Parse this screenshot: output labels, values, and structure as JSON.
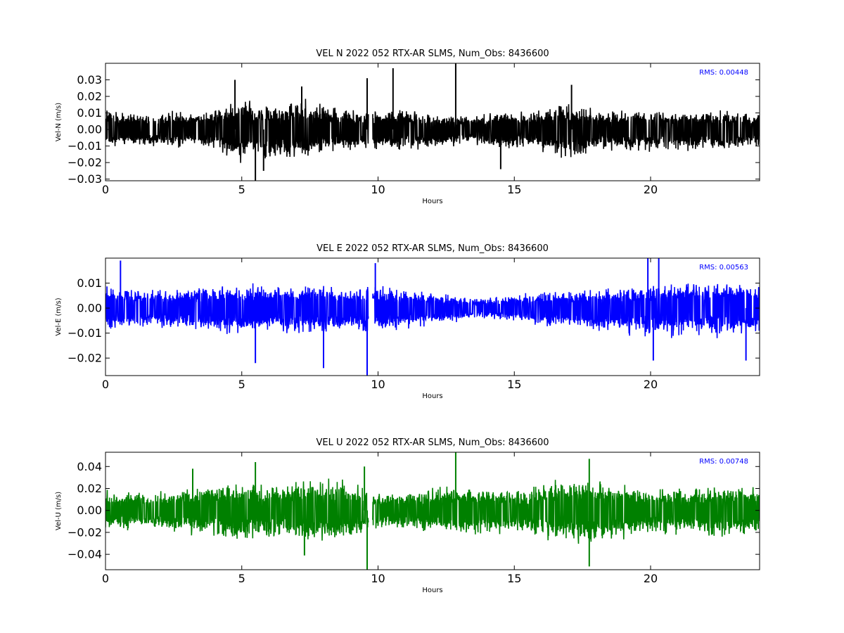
{
  "figure": {
    "background": "#ffffff"
  },
  "chart_data": [
    {
      "type": "line",
      "title": "VEL N 2022 052 RTX-AR  SLMS, Num_Obs: 8436600",
      "xlabel": "Hours",
      "ylabel": "Vel-N (m/s)",
      "color": "#000000",
      "xlim": [
        0,
        24
      ],
      "ylim": [
        -0.031,
        0.04
      ],
      "xticks": [
        0,
        5,
        10,
        15,
        20
      ],
      "yticks": [
        -0.03,
        -0.02,
        -0.01,
        0.0,
        0.01,
        0.02,
        0.03
      ],
      "ytick_labels": [
        "−0.03",
        "−0.02",
        "−0.01",
        "0.00",
        "0.01",
        "0.02",
        "0.03"
      ],
      "rms_label": "RMS:  0.00448",
      "rms_color": "#0000ff",
      "data_gap_hours": [
        9.65,
        9.8
      ],
      "envelope": {
        "hours": [
          0,
          2,
          4,
          4.8,
          5.5,
          6.5,
          7.3,
          8.5,
          9.6,
          9.8,
          11,
          12.5,
          13.5,
          14.5,
          15.5,
          16,
          17,
          18,
          19.5,
          21,
          22.5,
          24
        ],
        "upper": [
          0.012,
          0.011,
          0.013,
          0.02,
          0.017,
          0.017,
          0.02,
          0.014,
          0.013,
          0.014,
          0.013,
          0.01,
          0.009,
          0.013,
          0.011,
          0.013,
          0.018,
          0.013,
          0.012,
          0.012,
          0.012,
          0.011
        ],
        "lower": [
          -0.012,
          -0.011,
          -0.013,
          -0.021,
          -0.019,
          -0.02,
          -0.021,
          -0.015,
          -0.013,
          -0.014,
          -0.014,
          -0.011,
          -0.009,
          -0.014,
          -0.012,
          -0.015,
          -0.02,
          -0.014,
          -0.015,
          -0.014,
          -0.014,
          -0.011
        ]
      },
      "spikes": [
        {
          "hour": 4.75,
          "value": 0.03
        },
        {
          "hour": 5.5,
          "value": -0.031
        },
        {
          "hour": 9.6,
          "value": 0.031
        },
        {
          "hour": 10.55,
          "value": 0.037
        },
        {
          "hour": 12.85,
          "value": 0.04
        },
        {
          "hour": 7.2,
          "value": 0.026
        },
        {
          "hour": 17.1,
          "value": 0.027
        },
        {
          "hour": 14.5,
          "value": -0.024
        },
        {
          "hour": 5.8,
          "value": -0.025
        }
      ]
    },
    {
      "type": "line",
      "title": "VEL E 2022 052 RTX-AR  SLMS, Num_Obs: 8436600",
      "xlabel": "Hours",
      "ylabel": "Vel-E (m/s)",
      "color": "#0000ff",
      "xlim": [
        0,
        24
      ],
      "ylim": [
        -0.027,
        0.02
      ],
      "xticks": [
        0,
        5,
        10,
        15,
        20
      ],
      "yticks": [
        -0.02,
        -0.01,
        0.0,
        0.01
      ],
      "ytick_labels": [
        "−0.02",
        "−0.01",
        "0.00",
        "0.01"
      ],
      "rms_label": "RMS:  0.00563",
      "rms_color": "#0000ff",
      "data_gap_hours": [
        9.65,
        9.8
      ],
      "envelope": {
        "hours": [
          0,
          2,
          4,
          5,
          6,
          7.5,
          9,
          9.8,
          11,
          12.5,
          13.5,
          14.5,
          16,
          17.5,
          19,
          20,
          21,
          22,
          23,
          24
        ],
        "upper": [
          0.009,
          0.008,
          0.009,
          0.011,
          0.009,
          0.01,
          0.009,
          0.01,
          0.008,
          0.006,
          0.004,
          0.005,
          0.007,
          0.008,
          0.009,
          0.01,
          0.012,
          0.011,
          0.012,
          0.01
        ],
        "lower": [
          -0.01,
          -0.009,
          -0.01,
          -0.012,
          -0.01,
          -0.011,
          -0.01,
          -0.011,
          -0.009,
          -0.007,
          -0.005,
          -0.006,
          -0.008,
          -0.009,
          -0.011,
          -0.012,
          -0.013,
          -0.012,
          -0.013,
          -0.011
        ]
      },
      "spikes": [
        {
          "hour": 0.55,
          "value": 0.019
        },
        {
          "hour": 5.5,
          "value": -0.022
        },
        {
          "hour": 8.0,
          "value": -0.024
        },
        {
          "hour": 9.6,
          "value": -0.027
        },
        {
          "hour": 9.9,
          "value": 0.018
        },
        {
          "hour": 19.9,
          "value": 0.02
        },
        {
          "hour": 20.3,
          "value": 0.02
        },
        {
          "hour": 23.5,
          "value": -0.021
        },
        {
          "hour": 20.1,
          "value": -0.021
        }
      ]
    },
    {
      "type": "line",
      "title": "VEL U 2022 052 RTX-AR  SLMS, Num_Obs: 8436600",
      "xlabel": "Hours",
      "ylabel": "Vel-U (m/s)",
      "color": "#008000",
      "xlim": [
        0,
        24
      ],
      "ylim": [
        -0.054,
        0.053
      ],
      "xticks": [
        0,
        5,
        10,
        15,
        20
      ],
      "yticks": [
        -0.04,
        -0.02,
        0.0,
        0.02,
        0.04
      ],
      "ytick_labels": [
        "−0.04",
        "−0.02",
        "0.00",
        "0.02",
        "0.04"
      ],
      "rms_label": "RMS:  0.00748",
      "rms_color": "#0000ff",
      "data_gap_hours": [
        9.65,
        9.8
      ],
      "envelope": {
        "hours": [
          0,
          2,
          3.5,
          5,
          6,
          7.5,
          9,
          9.8,
          11,
          12.5,
          14,
          15.5,
          16.5,
          17.5,
          18.5,
          20,
          21.5,
          23,
          24
        ],
        "upper": [
          0.02,
          0.018,
          0.024,
          0.03,
          0.024,
          0.032,
          0.028,
          0.018,
          0.018,
          0.024,
          0.022,
          0.02,
          0.03,
          0.03,
          0.028,
          0.02,
          0.022,
          0.024,
          0.024
        ],
        "lower": [
          -0.02,
          -0.018,
          -0.026,
          -0.03,
          -0.026,
          -0.03,
          -0.028,
          -0.018,
          -0.018,
          -0.024,
          -0.024,
          -0.022,
          -0.03,
          -0.032,
          -0.03,
          -0.022,
          -0.024,
          -0.026,
          -0.026
        ]
      },
      "spikes": [
        {
          "hour": 5.5,
          "value": 0.044
        },
        {
          "hour": 9.6,
          "value": -0.054
        },
        {
          "hour": 9.5,
          "value": 0.04
        },
        {
          "hour": 12.85,
          "value": 0.053
        },
        {
          "hour": 17.75,
          "value": 0.047
        },
        {
          "hour": 17.75,
          "value": -0.051
        },
        {
          "hour": 7.3,
          "value": -0.041
        },
        {
          "hour": 3.2,
          "value": 0.038
        }
      ]
    }
  ]
}
